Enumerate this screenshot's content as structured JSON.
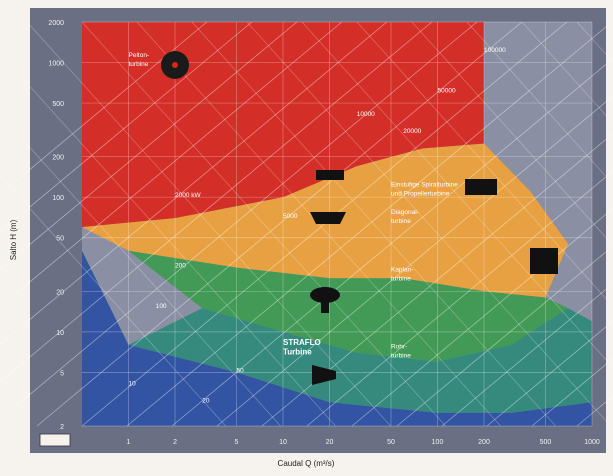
{
  "chart_data": {
    "type": "area",
    "xlabel": "Caudal Q (m³/s)",
    "ylabel": "Salto H (m)",
    "x_ticks": [
      1,
      2,
      5,
      10,
      20,
      50,
      100,
      200,
      500,
      1000
    ],
    "y_ticks": [
      2,
      5,
      10,
      20,
      50,
      100,
      200,
      500,
      1000,
      2000
    ],
    "x_range": [
      0.5,
      1000
    ],
    "y_range": [
      2,
      2000
    ],
    "scale": "log-log",
    "grid": true,
    "regions": [
      {
        "name": "Pelton",
        "label_lines": [
          "Pelton-",
          "turbine"
        ],
        "color": "#d9261c",
        "boundary": [
          [
            0.5,
            2000
          ],
          [
            0.5,
            60
          ],
          [
            2,
            70
          ],
          [
            10,
            100
          ],
          [
            30,
            170
          ],
          [
            80,
            230
          ],
          [
            200,
            250
          ],
          [
            200,
            2000
          ]
        ]
      },
      {
        "name": "Francis",
        "label_lines": [
          "Einstufige Spiralturbine",
          "und Propellerturbine"
        ],
        "color": "#f0a33a",
        "boundary": [
          [
            0.5,
            60
          ],
          [
            2,
            70
          ],
          [
            10,
            100
          ],
          [
            30,
            170
          ],
          [
            80,
            230
          ],
          [
            200,
            250
          ],
          [
            400,
            110
          ],
          [
            700,
            45
          ],
          [
            500,
            18
          ],
          [
            200,
            20
          ],
          [
            60,
            25
          ],
          [
            20,
            25
          ],
          [
            5,
            30
          ],
          [
            1,
            40
          ]
        ]
      },
      {
        "name": "Diagonal",
        "label_lines": [
          "Diagonal-",
          "turbine"
        ],
        "color": "#3d9a4f",
        "boundary": [
          [
            1,
            40
          ],
          [
            5,
            30
          ],
          [
            20,
            25
          ],
          [
            60,
            25
          ],
          [
            200,
            20
          ],
          [
            500,
            18
          ],
          [
            700,
            15
          ],
          [
            300,
            8
          ],
          [
            100,
            6
          ],
          [
            30,
            7
          ],
          [
            10,
            10
          ],
          [
            3,
            15
          ]
        ]
      },
      {
        "name": "Kaplan",
        "label_lines": [
          "Kaplan-",
          "turbine"
        ],
        "color": "#2e8a7a",
        "boundary": [
          [
            3,
            15
          ],
          [
            10,
            10
          ],
          [
            30,
            7
          ],
          [
            100,
            6
          ],
          [
            300,
            8
          ],
          [
            700,
            15
          ],
          [
            1000,
            12
          ],
          [
            1000,
            3
          ],
          [
            300,
            2.5
          ],
          [
            100,
            2.5
          ],
          [
            20,
            3
          ],
          [
            5,
            5
          ],
          [
            1,
            8
          ]
        ]
      },
      {
        "name": "Rohr",
        "label_lines": [
          "Rohr-",
          "turbine"
        ],
        "color": "#2a4fa3",
        "boundary": [
          [
            0.5,
            40
          ],
          [
            1,
            8
          ],
          [
            5,
            5
          ],
          [
            20,
            3
          ],
          [
            100,
            2.5
          ],
          [
            300,
            2.5
          ],
          [
            1000,
            3
          ],
          [
            1000,
            2
          ],
          [
            0.5,
            2
          ]
        ]
      }
    ],
    "diagonal_lines": [
      {
        "label": "2000 kW",
        "x": 2,
        "y": 100
      },
      {
        "label": "5000",
        "x": 10,
        "y": 70
      },
      {
        "label": "10000",
        "x": 30,
        "y": 400
      },
      {
        "label": "20000",
        "x": 60,
        "y": 300
      },
      {
        "label": "50000",
        "x": 100,
        "y": 600
      },
      {
        "label": "100000",
        "x": 200,
        "y": 1200
      },
      {
        "label": "200",
        "x": 2,
        "y": 30
      },
      {
        "label": "100",
        "x": 1.5,
        "y": 15
      },
      {
        "label": "50",
        "x": 5,
        "y": 5
      },
      {
        "label": "20",
        "x": 3,
        "y": 3
      },
      {
        "label": "10",
        "x": 1,
        "y": 4
      }
    ],
    "annotations": [
      {
        "text": "STRAFLO",
        "x": 10,
        "y": 8
      },
      {
        "text": "Turbine",
        "x": 10,
        "y": 6.8
      }
    ]
  }
}
